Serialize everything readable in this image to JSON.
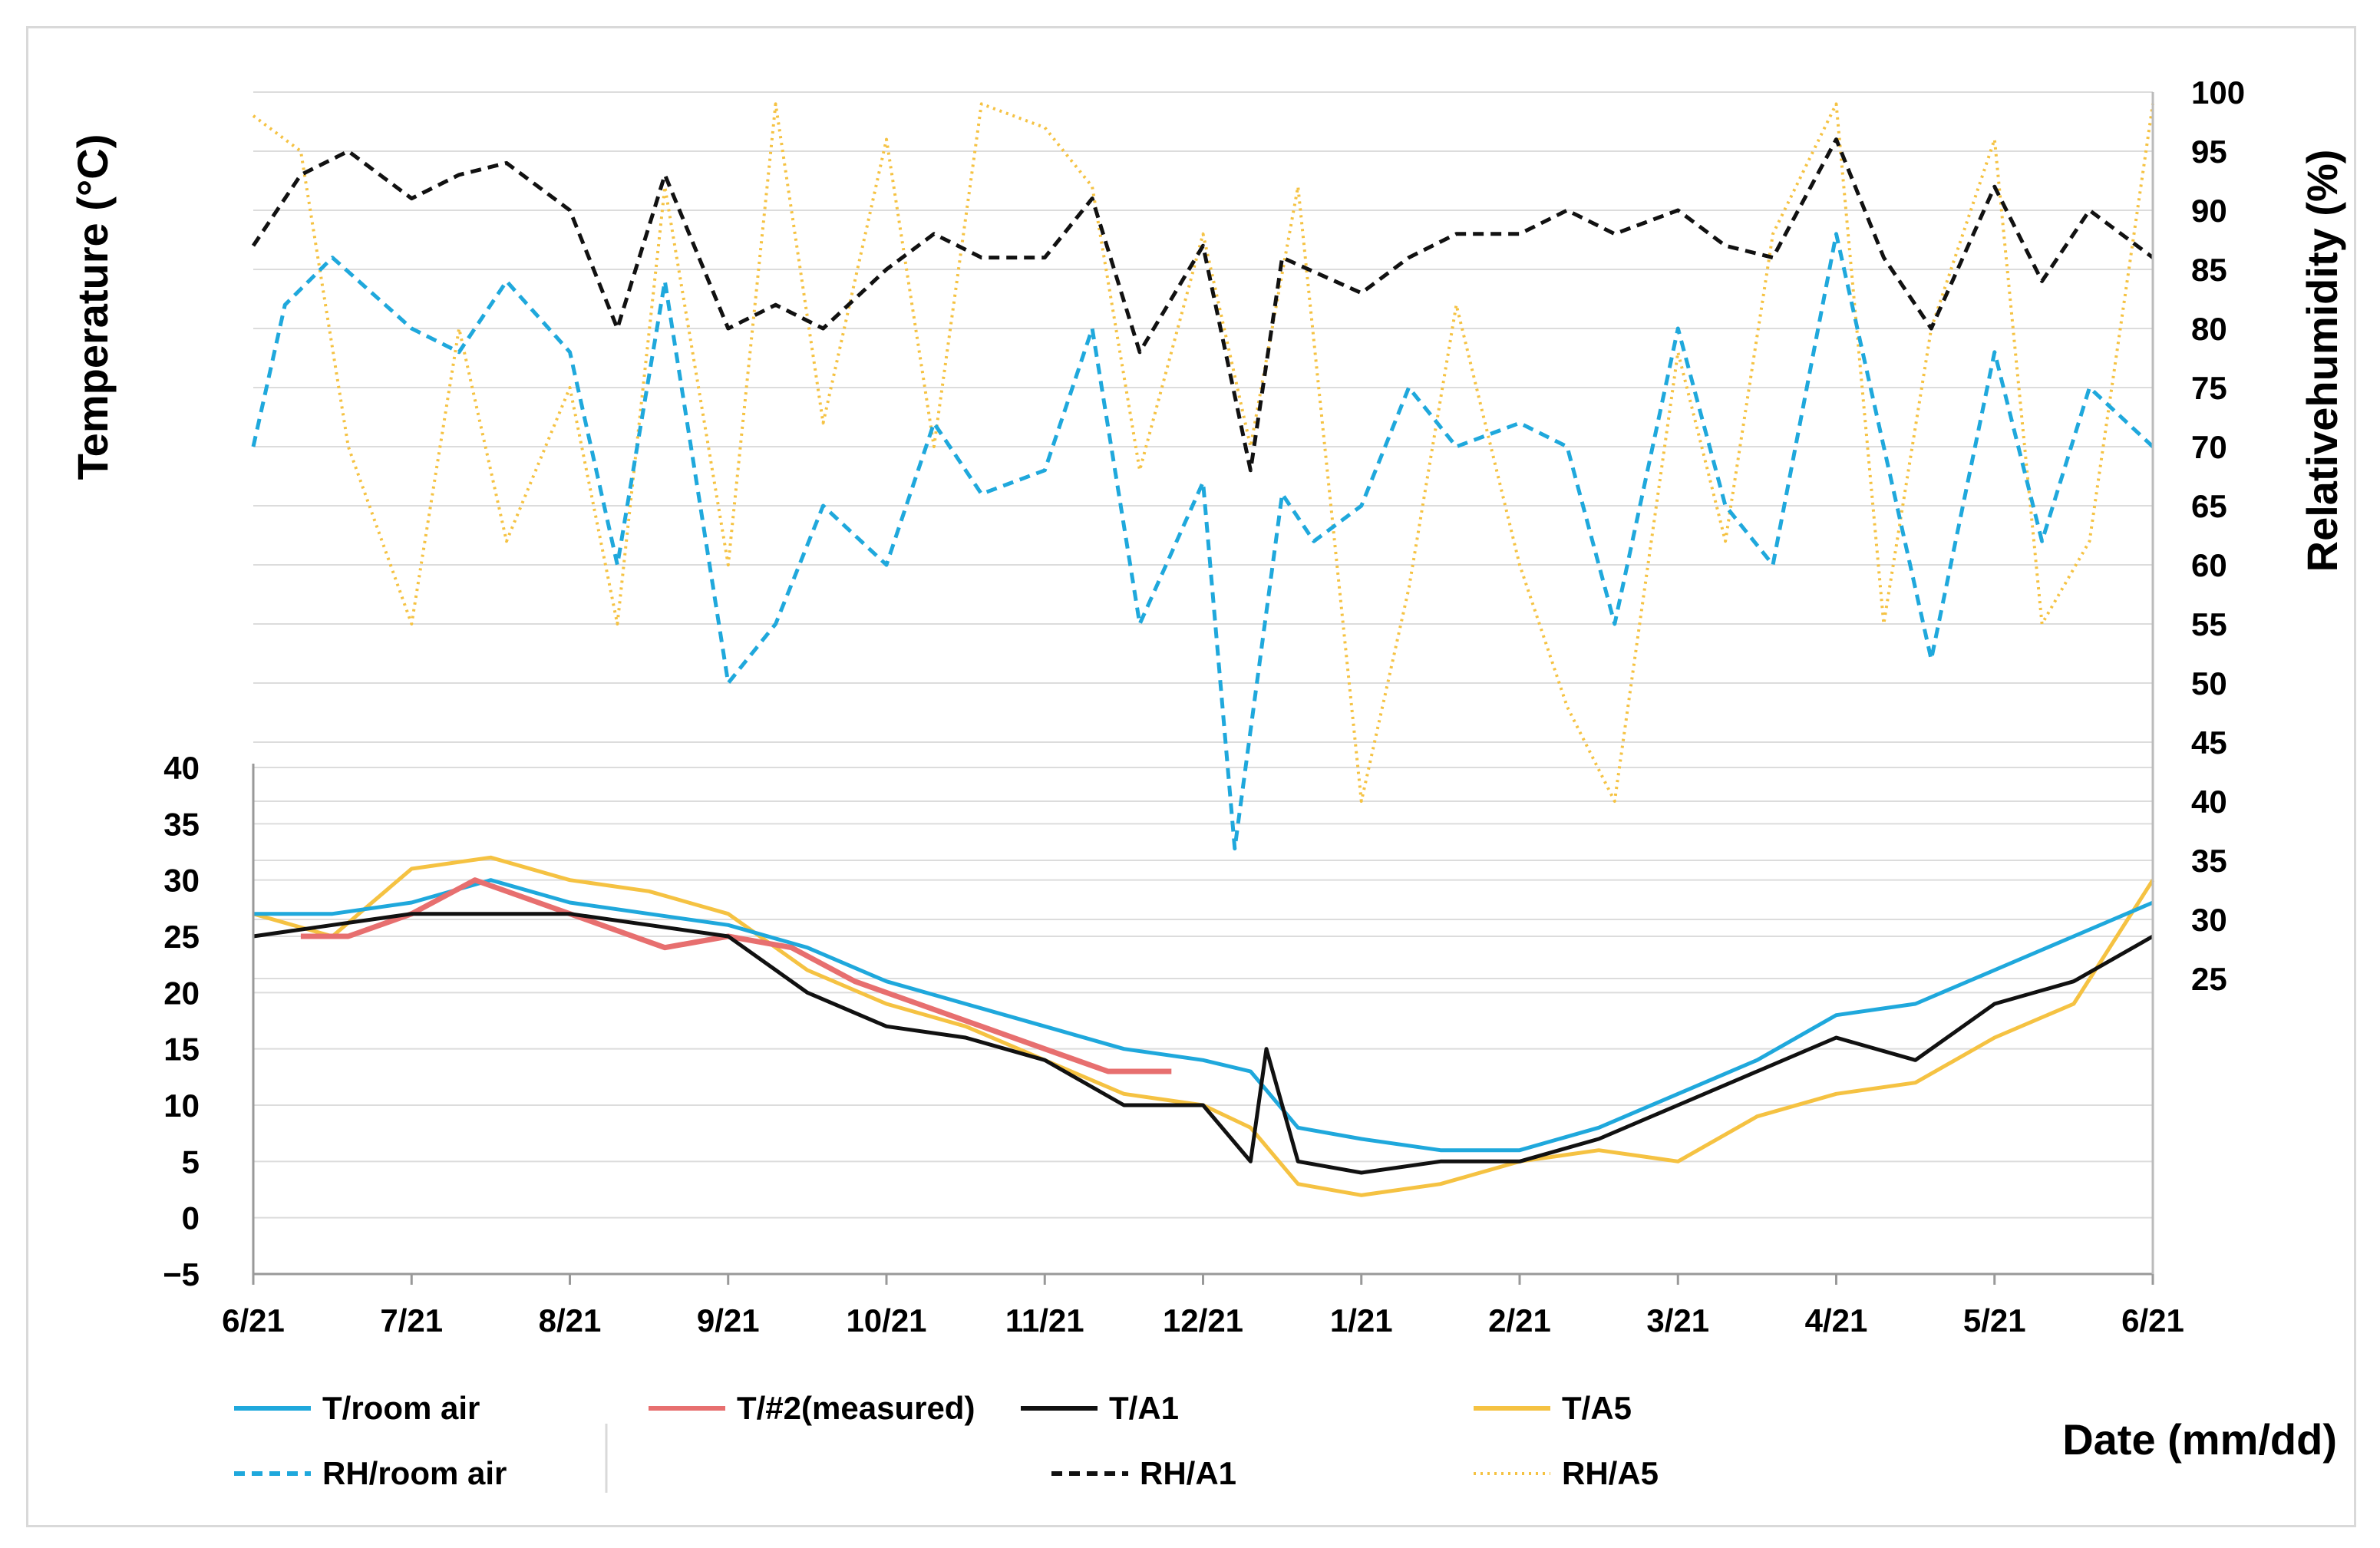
{
  "chart_data": {
    "type": "line",
    "title": "",
    "xlabel": "Date (mm/dd)",
    "ylabel_left": "Temperature (°C)",
    "ylabel_right": "Relativehumidity (%)",
    "x_ticks": [
      "6/21",
      "7/21",
      "8/21",
      "9/21",
      "10/21",
      "11/21",
      "12/21",
      "1/21",
      "2/21",
      "3/21",
      "4/21",
      "5/21",
      "6/21"
    ],
    "x_range_months": [
      0,
      12
    ],
    "temperature_axis": {
      "ticks": [
        "40",
        "35",
        "30",
        "25",
        "20",
        "15",
        "10",
        "5",
        "0",
        "−5"
      ],
      "ylim": [
        -5,
        40
      ]
    },
    "humidity_axis": {
      "ticks": [
        "100",
        "95",
        "90",
        "85",
        "80",
        "75",
        "70",
        "65",
        "60",
        "55",
        "50",
        "45",
        "40",
        "35",
        "30",
        "25"
      ],
      "ylim": [
        25,
        100
      ]
    },
    "grid": true,
    "series": [
      {
        "name": "T/room air",
        "axis": "temperature",
        "color": "#1FA8DC",
        "style": "solid",
        "x": [
          0,
          0.5,
          1,
          1.5,
          2,
          2.5,
          3,
          3.5,
          4,
          4.5,
          5,
          5.5,
          6,
          6.3,
          6.6,
          7,
          7.5,
          8,
          8.5,
          9,
          9.5,
          10,
          10.5,
          11,
          11.5,
          12
        ],
        "values": [
          27,
          27,
          28,
          30,
          28,
          27,
          26,
          24,
          21,
          19,
          17,
          15,
          14,
          13,
          8,
          7,
          6,
          6,
          8,
          11,
          14,
          18,
          19,
          22,
          25,
          28
        ]
      },
      {
        "name": "T/#2(measured)",
        "axis": "temperature",
        "color": "#E76F6F",
        "style": "solid",
        "x": [
          0.3,
          0.6,
          1,
          1.4,
          1.8,
          2.2,
          2.6,
          3,
          3.4,
          3.8,
          4.2,
          4.6,
          5,
          5.4,
          5.8
        ],
        "values": [
          25,
          25,
          27,
          30,
          28,
          26,
          24,
          25,
          24,
          21,
          19,
          17,
          15,
          13,
          13
        ]
      },
      {
        "name": "T/A1",
        "axis": "temperature",
        "color": "#111111",
        "style": "solid",
        "x": [
          0,
          0.5,
          1,
          1.5,
          2,
          2.5,
          3,
          3.5,
          4,
          4.5,
          5,
          5.5,
          6,
          6.3,
          6.4,
          6.6,
          7,
          7.5,
          8,
          8.5,
          9,
          9.5,
          10,
          10.5,
          11,
          11.5,
          12
        ],
        "values": [
          25,
          26,
          27,
          27,
          27,
          26,
          25,
          20,
          17,
          16,
          14,
          10,
          10,
          5,
          15,
          5,
          4,
          5,
          5,
          7,
          10,
          13,
          16,
          14,
          19,
          21,
          25
        ]
      },
      {
        "name": "T/A5",
        "axis": "temperature",
        "color": "#F5C242",
        "style": "solid",
        "x": [
          0,
          0.5,
          1,
          1.5,
          2,
          2.5,
          3,
          3.5,
          4,
          4.5,
          5,
          5.5,
          6,
          6.3,
          6.6,
          7,
          7.5,
          8,
          8.5,
          9,
          9.5,
          10,
          10.5,
          11,
          11.5,
          12
        ],
        "values": [
          27,
          25,
          31,
          32,
          30,
          29,
          27,
          22,
          19,
          17,
          14,
          11,
          10,
          8,
          3,
          2,
          3,
          5,
          6,
          5,
          9,
          11,
          12,
          16,
          19,
          30
        ]
      },
      {
        "name": "RH/room air",
        "axis": "humidity",
        "color": "#1FA8DC",
        "style": "dashed",
        "x": [
          0,
          0.2,
          0.5,
          1,
          1.3,
          1.6,
          2,
          2.3,
          2.6,
          3,
          3.3,
          3.6,
          4,
          4.3,
          4.6,
          5,
          5.3,
          5.6,
          6,
          6.2,
          6.5,
          6.7,
          7,
          7.3,
          7.6,
          8,
          8.3,
          8.6,
          9,
          9.3,
          9.6,
          10,
          10.3,
          10.6,
          11,
          11.3,
          11.6,
          12
        ],
        "values": [
          70,
          82,
          86,
          80,
          78,
          84,
          78,
          60,
          84,
          50,
          55,
          65,
          60,
          72,
          66,
          68,
          80,
          55,
          67,
          36,
          66,
          62,
          65,
          75,
          70,
          72,
          70,
          55,
          80,
          65,
          60,
          88,
          70,
          52,
          78,
          62,
          75,
          70
        ]
      },
      {
        "name": "RH/A1",
        "axis": "humidity",
        "color": "#111111",
        "style": "dashed",
        "x": [
          0,
          0.3,
          0.6,
          1,
          1.3,
          1.6,
          2,
          2.3,
          2.6,
          3,
          3.3,
          3.6,
          4,
          4.3,
          4.6,
          5,
          5.3,
          5.6,
          6,
          6.3,
          6.5,
          7,
          7.3,
          7.6,
          8,
          8.3,
          8.6,
          9,
          9.3,
          9.6,
          10,
          10.3,
          10.6,
          11,
          11.3,
          11.6,
          12
        ],
        "values": [
          87,
          93,
          95,
          91,
          93,
          94,
          90,
          80,
          93,
          80,
          82,
          80,
          85,
          88,
          86,
          86,
          91,
          78,
          87,
          68,
          86,
          83,
          86,
          88,
          88,
          90,
          88,
          90,
          87,
          86,
          96,
          86,
          80,
          92,
          84,
          90,
          86
        ]
      },
      {
        "name": "RH/A5",
        "axis": "humidity",
        "color": "#F5C242",
        "style": "dotted",
        "x": [
          0,
          0.3,
          0.6,
          1,
          1.3,
          1.6,
          2,
          2.3,
          2.6,
          3,
          3.3,
          3.6,
          4,
          4.3,
          4.6,
          5,
          5.3,
          5.6,
          6,
          6.3,
          6.6,
          7,
          7.3,
          7.6,
          8,
          8.3,
          8.6,
          9,
          9.3,
          9.6,
          10,
          10.3,
          10.6,
          11,
          11.3,
          11.6,
          12
        ],
        "values": [
          98,
          95,
          70,
          55,
          80,
          62,
          75,
          55,
          92,
          60,
          99,
          72,
          96,
          70,
          99,
          97,
          92,
          68,
          88,
          70,
          92,
          40,
          58,
          82,
          60,
          48,
          40,
          78,
          62,
          88,
          99,
          55,
          80,
          96,
          55,
          62,
          99
        ]
      }
    ]
  },
  "legend": {
    "items": [
      {
        "label": "T/room air",
        "color": "#1FA8DC",
        "style": "solid"
      },
      {
        "label": "T/#2(measured)",
        "color": "#E76F6F",
        "style": "solid"
      },
      {
        "label": "T/A1",
        "color": "#111111",
        "style": "solid"
      },
      {
        "label": "T/A5",
        "color": "#F5C242",
        "style": "solid"
      },
      {
        "label": "RH/room air",
        "color": "#1FA8DC",
        "style": "dashed"
      },
      {
        "label": "RH/A1",
        "color": "#111111",
        "style": "dashed"
      },
      {
        "label": "RH/A5",
        "color": "#F5C242",
        "style": "dotted"
      }
    ]
  }
}
